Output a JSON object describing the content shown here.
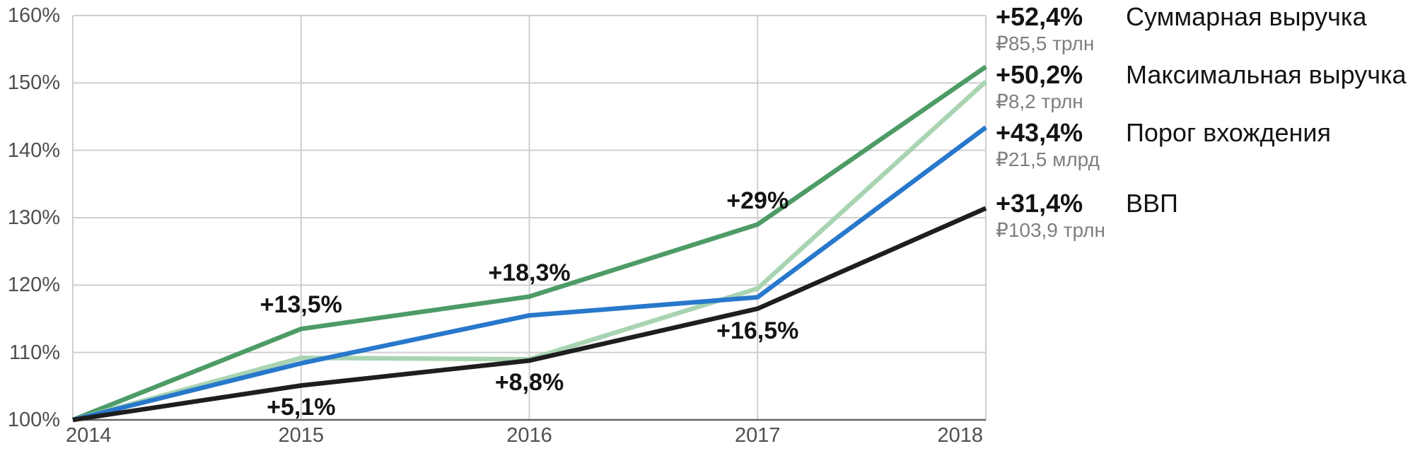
{
  "chart_data": {
    "type": "line",
    "x": [
      2014,
      2015,
      2016,
      2017,
      2018
    ],
    "x_labels": [
      "2014",
      "2015",
      "2016",
      "2017",
      "2018"
    ],
    "ylim": [
      100,
      160
    ],
    "y_ticks": [
      100,
      110,
      120,
      130,
      140,
      150,
      160
    ],
    "y_tick_labels": [
      "100%",
      "110%",
      "120%",
      "130%",
      "140%",
      "150%",
      "160%"
    ],
    "grid": true,
    "legend_position": "right",
    "series": [
      {
        "name": "Суммарная выручка",
        "color": "#4d9b66",
        "values": [
          100,
          113.5,
          118.3,
          129.0,
          152.4
        ],
        "final_change": "+52,4%",
        "final_value": "₽85,5 трлн"
      },
      {
        "name": "Максимальная выручка",
        "color": "#a8d4b2",
        "values": [
          100,
          109.2,
          109.0,
          119.5,
          150.2
        ],
        "final_change": "+50,2%",
        "final_value": "₽8,2 трлн"
      },
      {
        "name": "Порог вхождения",
        "color": "#2878cc",
        "values": [
          100,
          108.4,
          115.5,
          118.2,
          143.4
        ],
        "final_change": "+43,4%",
        "final_value": "₽21,5 млрд"
      },
      {
        "name": "ВВП",
        "color": "#1e1e1e",
        "values": [
          100,
          105.1,
          108.8,
          116.5,
          131.4
        ],
        "final_change": "+31,4%",
        "final_value": "₽103,9 трлн"
      }
    ],
    "annotations": [
      {
        "label": "+13,5%",
        "x": 2015,
        "y": 113.5,
        "series": "Суммарная выручка",
        "position": "above"
      },
      {
        "label": "+18,3%",
        "x": 2016,
        "y": 118.3,
        "series": "Суммарная выручка",
        "position": "above"
      },
      {
        "label": "+29%",
        "x": 2017,
        "y": 129.0,
        "series": "Суммарная выручка",
        "position": "above"
      },
      {
        "label": "+5,1%",
        "x": 2015,
        "y": 105.1,
        "series": "ВВП",
        "position": "below"
      },
      {
        "label": "+8,8%",
        "x": 2016,
        "y": 108.8,
        "series": "ВВП",
        "position": "below"
      },
      {
        "label": "+16,5%",
        "x": 2017,
        "y": 116.5,
        "series": "ВВП",
        "position": "below"
      }
    ]
  }
}
